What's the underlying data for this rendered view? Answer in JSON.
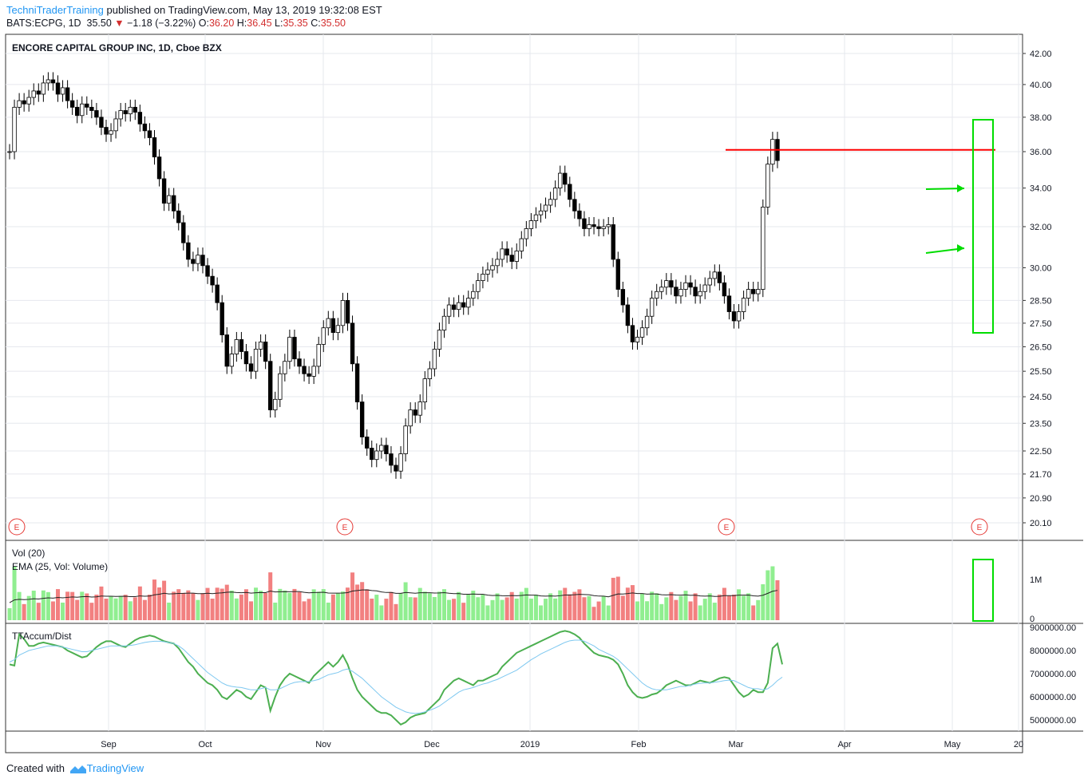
{
  "header": {
    "author": "TechniTraderTraining",
    "published": "published on TradingView.com, May 13, 2019 19:32:08 EST",
    "symbol": "BATS:ECPG, 1D",
    "last": "35.50",
    "change": "−1.18 (−3.22%)",
    "o_label": "O:",
    "o_value": "36.20",
    "h_label": "H:",
    "h_value": "36.45",
    "l_label": "L:",
    "l_value": "35.35",
    "c_label": "C:",
    "c_value": "35.50"
  },
  "footer": {
    "created_with": "Created with",
    "brand": "TradingView"
  },
  "colors": {
    "up_vol": "#90ee90",
    "down_vol": "#f28080",
    "resistance": "#ff0000",
    "highlight": "#00dd00",
    "accum": "#4caf50",
    "accum_avg": "#7ec8f0",
    "earnings": "#e53935"
  },
  "chart_data": [
    {
      "type": "candlestick",
      "title": "ENCORE CAPITAL GROUP INC, 1D, Cboe BZX",
      "y_ticks": [
        "42.00",
        "40.00",
        "38.00",
        "36.00",
        "34.00",
        "32.00",
        "30.00",
        "28.50",
        "27.50",
        "26.50",
        "25.50",
        "24.50",
        "23.50",
        "22.50",
        "21.70",
        "20.90",
        "20.10"
      ],
      "y_tick_values": [
        42.0,
        40.0,
        38.0,
        36.0,
        34.0,
        32.0,
        30.0,
        28.5,
        27.5,
        26.5,
        25.5,
        24.5,
        23.5,
        22.5,
        21.7,
        20.9,
        20.1
      ],
      "y_scale": "log",
      "x_ticks": [
        "Sep",
        "Oct",
        "Nov",
        "Dec",
        "2019",
        "Feb",
        "Mar",
        "Apr",
        "May",
        "20"
      ],
      "close_series": [
        36.0,
        38.6,
        39.0,
        38.8,
        39.2,
        39.6,
        39.4,
        40.1,
        40.3,
        40.1,
        39.4,
        39.8,
        39.0,
        38.6,
        38.1,
        38.8,
        38.6,
        38.4,
        38.0,
        37.4,
        37.0,
        37.2,
        37.9,
        38.4,
        38.2,
        38.6,
        38.3,
        37.6,
        37.2,
        36.8,
        35.7,
        34.5,
        33.2,
        33.6,
        32.8,
        32.2,
        31.2,
        30.4,
        30.2,
        30.6,
        30.1,
        29.6,
        29.2,
        28.4,
        27.0,
        25.7,
        26.2,
        26.8,
        26.3,
        25.8,
        25.5,
        26.4,
        26.7,
        25.9,
        24.0,
        24.4,
        25.4,
        25.9,
        26.9,
        26.0,
        25.7,
        25.4,
        25.3,
        25.7,
        26.6,
        27.3,
        27.7,
        27.1,
        27.4,
        28.5,
        27.5,
        25.8,
        24.3,
        23.0,
        22.6,
        22.2,
        22.5,
        22.7,
        22.4,
        22.0,
        21.8,
        22.4,
        23.4,
        24.0,
        23.8,
        24.3,
        25.2,
        25.6,
        26.4,
        27.2,
        27.8,
        28.3,
        28.1,
        28.4,
        28.2,
        28.6,
        28.9,
        29.4,
        29.7,
        29.9,
        30.1,
        30.4,
        30.9,
        30.6,
        30.3,
        30.8,
        31.4,
        31.9,
        32.3,
        32.6,
        32.8,
        33.1,
        33.4,
        34.0,
        34.8,
        34.2,
        33.4,
        32.8,
        32.4,
        31.9,
        32.1,
        32.0,
        31.9,
        32.0,
        32.1,
        30.4,
        29.0,
        28.3,
        27.4,
        26.7,
        26.9,
        27.3,
        27.8,
        28.6,
        28.9,
        29.1,
        29.4,
        29.1,
        28.7,
        29.0,
        29.3,
        29.1,
        28.7,
        28.9,
        29.2,
        29.5,
        29.8,
        29.3,
        28.7,
        28.0,
        27.6,
        28.0,
        28.6,
        29.0,
        28.8,
        29.0,
        33.0,
        35.3,
        36.7,
        35.5
      ],
      "volume_scale": [
        "1M",
        "0"
      ],
      "earnings_markers": [
        "E",
        "E",
        "E",
        "E"
      ],
      "indicator_labels": [
        "Vol (20)",
        "EMA (25, Vol: Volume)"
      ]
    },
    {
      "type": "line",
      "title": "TTAccum/Dist",
      "y_ticks": [
        "9000000.00",
        "8000000.00",
        "7000000.00",
        "6000000.00",
        "5000000.00"
      ],
      "y_tick_values": [
        9000000,
        8000000,
        7000000,
        6000000,
        5000000
      ],
      "series": [
        {
          "values": [
            7.4,
            7.35,
            8.7,
            8.5,
            8.2,
            8.2,
            8.3,
            8.35,
            8.3,
            8.25,
            8.2,
            8.15,
            8.0,
            7.9,
            7.8,
            7.7,
            7.75,
            7.95,
            8.15,
            8.3,
            8.4,
            8.4,
            8.3,
            8.2,
            8.15,
            8.3,
            8.45,
            8.55,
            8.6,
            8.65,
            8.6,
            8.5,
            8.4,
            8.35,
            8.3,
            8.1,
            7.8,
            7.5,
            7.3,
            7.0,
            6.8,
            6.6,
            6.5,
            6.3,
            6.0,
            5.9,
            6.1,
            6.3,
            6.2,
            6.0,
            5.9,
            6.2,
            6.5,
            6.4,
            5.4,
            6.0,
            6.5,
            6.8,
            7.0,
            6.9,
            6.8,
            6.7,
            6.6,
            6.9,
            7.1,
            7.3,
            7.5,
            7.3,
            7.5,
            7.8,
            7.4,
            6.8,
            6.3,
            6.0,
            5.8,
            5.6,
            5.4,
            5.3,
            5.3,
            5.2,
            5.0,
            4.8,
            4.9,
            5.1,
            5.2,
            5.25,
            5.3,
            5.5,
            5.7,
            5.9,
            6.3,
            6.5,
            6.7,
            6.8,
            6.7,
            6.6,
            6.5,
            6.7,
            6.7,
            6.8,
            6.9,
            7.0,
            7.3,
            7.5,
            7.7,
            7.9,
            8.0,
            8.1,
            8.2,
            8.3,
            8.4,
            8.5,
            8.6,
            8.7,
            8.8,
            8.85,
            8.8,
            8.7,
            8.55,
            8.3,
            8.1,
            7.9,
            7.8,
            7.75,
            7.7,
            7.6,
            7.4,
            7.0,
            6.5,
            6.2,
            6.0,
            5.95,
            6.0,
            6.1,
            6.15,
            6.3,
            6.5,
            6.6,
            6.7,
            6.6,
            6.5,
            6.5,
            6.6,
            6.7,
            6.65,
            6.6,
            6.7,
            6.8,
            6.85,
            6.8,
            6.5,
            6.2,
            6.0,
            6.1,
            6.3,
            6.2,
            6.2,
            6.6,
            8.1,
            8.3,
            7.4
          ]
        },
        {
          "values": [
            7.5,
            7.6,
            7.8,
            7.9,
            8.0,
            8.05,
            8.1,
            8.15,
            8.2,
            8.2,
            8.2,
            8.15,
            8.1,
            8.05,
            8.0,
            7.95,
            7.95,
            8.0,
            8.05,
            8.1,
            8.15,
            8.2,
            8.2,
            8.2,
            8.2,
            8.22,
            8.25,
            8.3,
            8.35,
            8.38,
            8.4,
            8.4,
            8.38,
            8.35,
            8.3,
            8.2,
            8.05,
            7.85,
            7.65,
            7.45,
            7.25,
            7.05,
            6.9,
            6.75,
            6.6,
            6.5,
            6.45,
            6.42,
            6.4,
            6.35,
            6.3,
            6.3,
            6.35,
            6.4,
            6.3,
            6.3,
            6.35,
            6.45,
            6.55,
            6.62,
            6.65,
            6.66,
            6.66,
            6.7,
            6.75,
            6.85,
            6.95,
            7.0,
            7.05,
            7.15,
            7.2,
            7.1,
            6.95,
            6.8,
            6.6,
            6.4,
            6.2,
            6.0,
            5.85,
            5.7,
            5.55,
            5.45,
            5.35,
            5.3,
            5.28,
            5.3,
            5.35,
            5.42,
            5.5,
            5.6,
            5.75,
            5.9,
            6.05,
            6.2,
            6.3,
            6.35,
            6.4,
            6.48,
            6.55,
            6.6,
            6.68,
            6.75,
            6.85,
            6.95,
            7.05,
            7.15,
            7.3,
            7.45,
            7.6,
            7.72,
            7.85,
            7.95,
            8.05,
            8.15,
            8.25,
            8.35,
            8.42,
            8.45,
            8.45,
            8.4,
            8.3,
            8.2,
            8.05,
            7.95,
            7.85,
            7.75,
            7.6,
            7.4,
            7.2,
            7.0,
            6.8,
            6.6,
            6.45,
            6.35,
            6.3,
            6.3,
            6.3,
            6.35,
            6.4,
            6.45,
            6.45,
            6.5,
            6.55,
            6.58,
            6.6,
            6.6,
            6.63,
            6.66,
            6.7,
            6.72,
            6.7,
            6.6,
            6.5,
            6.4,
            6.35,
            6.35,
            6.3,
            6.35,
            6.5,
            6.7,
            6.85
          ]
        }
      ]
    }
  ]
}
